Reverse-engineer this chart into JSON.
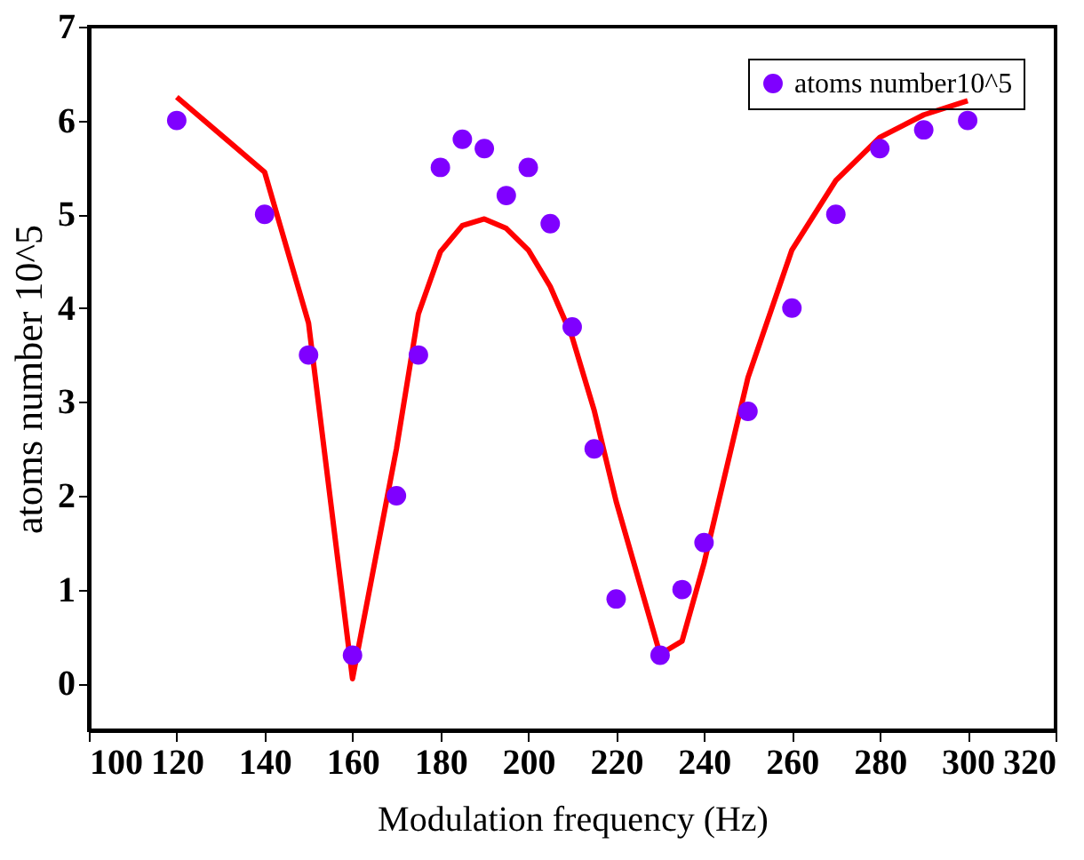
{
  "chart_data": {
    "type": "scatter",
    "xlabel": "Modulation frequency (Hz)",
    "ylabel": "atoms number 10^5",
    "xlim": [
      100,
      320
    ],
    "xticks": [
      100,
      120,
      140,
      160,
      180,
      200,
      220,
      240,
      260,
      280,
      300,
      320
    ],
    "ylim": [
      -0.5,
      7
    ],
    "yticks": [
      0,
      1,
      2,
      3,
      4,
      5,
      6,
      7
    ],
    "grid": false,
    "legend": "top right",
    "series": [
      {
        "name": "atoms number10^5",
        "type": "scatter",
        "marker": "circle",
        "color": "#7f00ff",
        "x": [
          120,
          140,
          150,
          160,
          170,
          175,
          180,
          185,
          190,
          195,
          200,
          205,
          210,
          215,
          220,
          230,
          235,
          240,
          250,
          260,
          270,
          280,
          290,
          300
        ],
        "values": [
          6.0,
          5.0,
          3.5,
          0.3,
          2.0,
          3.5,
          5.5,
          5.8,
          5.7,
          5.2,
          5.5,
          4.9,
          3.8,
          2.5,
          0.9,
          0.3,
          1.0,
          1.5,
          2.9,
          4.0,
          5.0,
          5.7,
          5.9,
          6.0
        ]
      },
      {
        "type": "line",
        "color": "#ff0000",
        "line_style": "solid",
        "x": [
          120,
          140,
          150,
          160,
          170,
          175,
          180,
          185,
          190,
          195,
          200,
          205,
          210,
          215,
          220,
          230,
          235,
          240,
          250,
          260,
          270,
          280,
          290,
          300
        ],
        "values": [
          6.25,
          5.45,
          3.84,
          0.05,
          2.5,
          3.94,
          4.6,
          4.88,
          4.95,
          4.85,
          4.62,
          4.23,
          3.69,
          2.91,
          1.94,
          0.31,
          0.45,
          1.28,
          3.26,
          4.62,
          5.36,
          5.82,
          6.06,
          6.21
        ]
      }
    ]
  }
}
